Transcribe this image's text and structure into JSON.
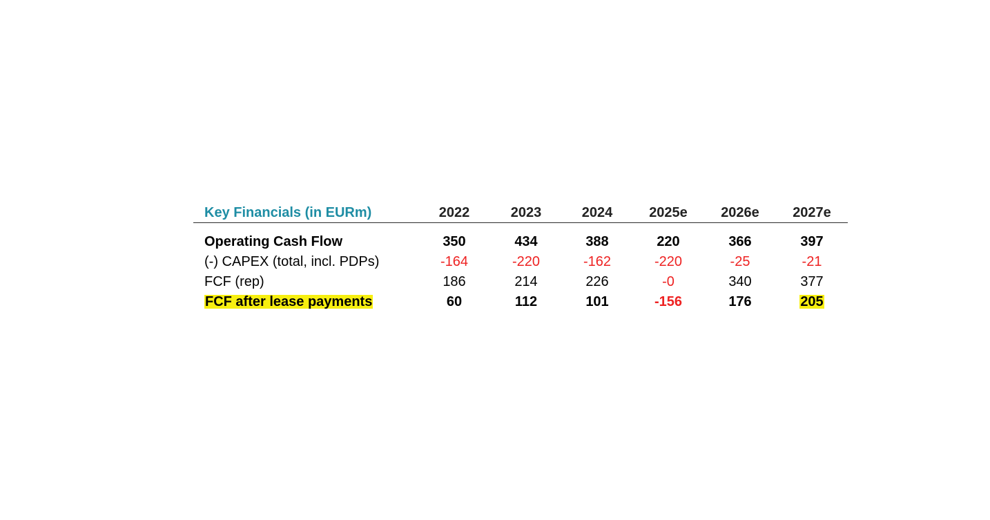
{
  "table": {
    "title": "Key Financials (in EURm)",
    "columns": [
      "2022",
      "2023",
      "2024",
      "2025e",
      "2026e",
      "2027e"
    ],
    "rows": [
      {
        "label": "Operating Cash Flow",
        "values": [
          "350",
          "434",
          "388",
          "220",
          "366",
          "397"
        ]
      },
      {
        "label": "(-) CAPEX (total, incl. PDPs)",
        "values": [
          "-164",
          "-220",
          "-162",
          "-220",
          "-25",
          "-21"
        ]
      },
      {
        "label": "FCF (rep)",
        "values": [
          "186",
          "214",
          "226",
          "-0",
          "340",
          "377"
        ]
      },
      {
        "label": "FCF after lease payments",
        "values": [
          "60",
          "112",
          "101",
          "-156",
          "176",
          "205"
        ]
      }
    ]
  },
  "colors": {
    "title": "#1e8da4",
    "negative": "#ee2222",
    "highlight": "#f7ef10"
  }
}
